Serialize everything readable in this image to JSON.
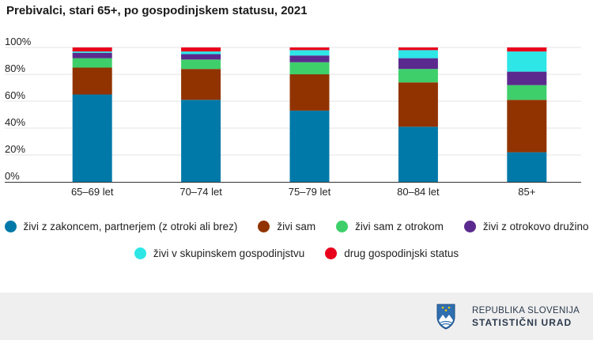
{
  "title": "Prebivalci, stari 65+, po gospodinjskem statusu, 2021",
  "chart_data": {
    "type": "bar",
    "stacked": true,
    "categories": [
      "65–69 let",
      "70–74 let",
      "75–79 let",
      "80–84 let",
      "85+"
    ],
    "ylim": [
      0,
      100
    ],
    "yticks": [
      0,
      20,
      40,
      60,
      80,
      100
    ],
    "ytick_labels": [
      "0%",
      "20%",
      "40%",
      "60%",
      "80%",
      "100%"
    ],
    "series": [
      {
        "name": "živi z zakoncem, partnerjem (z otroki ali brez)",
        "color": "#0079a8",
        "values": [
          65,
          61,
          53,
          41,
          22
        ]
      },
      {
        "name": "živi sam",
        "color": "#913300",
        "values": [
          20,
          23,
          27,
          33,
          39
        ]
      },
      {
        "name": "živi sam z otrokom",
        "color": "#3ecf6b",
        "values": [
          7,
          7,
          9,
          10,
          11
        ]
      },
      {
        "name": "živi z otrokovo družino",
        "color": "#5b2a8e",
        "values": [
          4,
          4,
          5,
          8,
          10
        ]
      },
      {
        "name": "živi v skupinskem gospodinjstvu",
        "color": "#2ee6e6",
        "values": [
          1,
          2,
          4,
          6,
          15
        ]
      },
      {
        "name": "drug gospodinjski status",
        "color": "#e8001c",
        "values": [
          3,
          3,
          2,
          2,
          3
        ]
      }
    ]
  },
  "footer": {
    "org_line1": "REPUBLIKA SLOVENIJA",
    "org_line2": "STATISTIČNI URAD"
  }
}
